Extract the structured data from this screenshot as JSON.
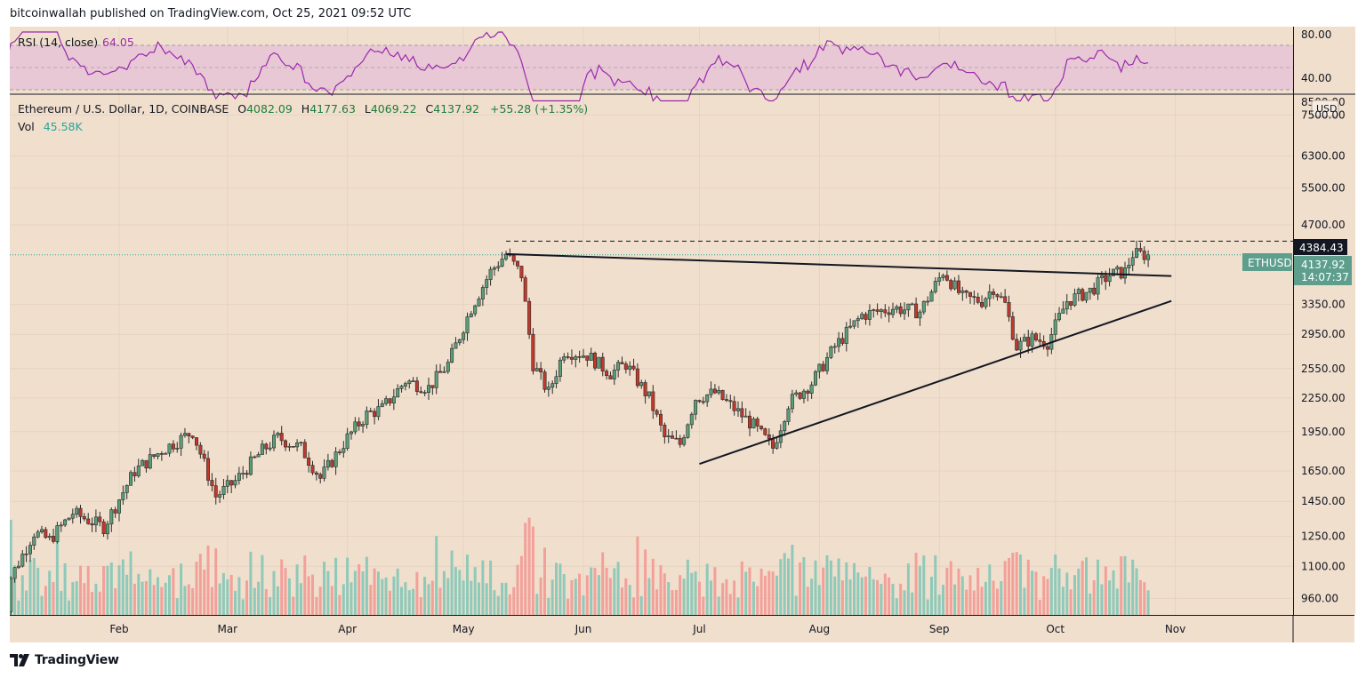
{
  "header": {
    "attribution": "bitcoinwallah published on TradingView.com, Oct 25, 2021 09:52 UTC"
  },
  "footer": {
    "brand": "TradingView"
  },
  "rsi": {
    "label": "RSI (14, close)",
    "value": "64.05",
    "levels": [
      "80.00",
      "40.00"
    ],
    "color": "#9c27b0",
    "band_color": "#e7c8d4"
  },
  "legend": {
    "symbol": "Ethereum / U.S. Dollar, 1D, COINBASE",
    "open_label": "O",
    "open": "4082.09",
    "high_label": "H",
    "high": "4177.63",
    "low_label": "L",
    "low": "4069.22",
    "close_label": "C",
    "close": "4137.92",
    "change": "+55.28 (+1.35%)",
    "vol_label": "Vol",
    "vol_value": "45.58K"
  },
  "price_axis": {
    "currency": "USD",
    "top_label": "8500.00",
    "ticks": [
      "7500.00",
      "6300.00",
      "5500.00",
      "4700.00",
      "3350.00",
      "2950.00",
      "2550.00",
      "2250.00",
      "1950.00",
      "1650.00",
      "1450.00",
      "1250.00",
      "1100.00",
      "960.00"
    ]
  },
  "markers": {
    "high_line": "4384.43",
    "symbol_tag": "ETHUSD",
    "last_price": "4137.92",
    "countdown": "14:07:37"
  },
  "colors": {
    "up": "#26a69a",
    "down": "#ef5350",
    "background": "#f1dfcd",
    "text": "#131722"
  },
  "chart_data": {
    "type": "candlestick",
    "symbol": "ETHUSD",
    "timeframe": "1D",
    "price_scale": "log",
    "x_ticks": [
      "Feb",
      "Mar",
      "Apr",
      "May",
      "Jun",
      "Jul",
      "Aug",
      "Sep",
      "Oct",
      "Nov"
    ],
    "close_series": [
      [
        "2021-01-01",
        730
      ],
      [
        "2021-01-04",
        1050
      ],
      [
        "2021-01-10",
        1270
      ],
      [
        "2021-01-14",
        1230
      ],
      [
        "2021-01-20",
        1380
      ],
      [
        "2021-01-28",
        1300
      ],
      [
        "2021-02-05",
        1650
      ],
      [
        "2021-02-12",
        1800
      ],
      [
        "2021-02-20",
        1950
      ],
      [
        "2021-02-26",
        1480
      ],
      [
        "2021-03-03",
        1580
      ],
      [
        "2021-03-10",
        1800
      ],
      [
        "2021-03-14",
        1900
      ],
      [
        "2021-03-20",
        1820
      ],
      [
        "2021-03-25",
        1600
      ],
      [
        "2021-04-01",
        1900
      ],
      [
        "2021-04-06",
        2100
      ],
      [
        "2021-04-10",
        2150
      ],
      [
        "2021-04-16",
        2420
      ],
      [
        "2021-04-22",
        2350
      ],
      [
        "2021-04-27",
        2600
      ],
      [
        "2021-05-03",
        3300
      ],
      [
        "2021-05-08",
        3850
      ],
      [
        "2021-05-12",
        4150
      ],
      [
        "2021-05-16",
        3800
      ],
      [
        "2021-05-19",
        2600
      ],
      [
        "2021-05-23",
        2300
      ],
      [
        "2021-05-27",
        2750
      ],
      [
        "2021-06-02",
        2700
      ],
      [
        "2021-06-08",
        2500
      ],
      [
        "2021-06-12",
        2600
      ],
      [
        "2021-06-18",
        2250
      ],
      [
        "2021-06-22",
        1900
      ],
      [
        "2021-06-26",
        1850
      ],
      [
        "2021-06-30",
        2250
      ],
      [
        "2021-07-05",
        2300
      ],
      [
        "2021-07-10",
        2150
      ],
      [
        "2021-07-15",
        2000
      ],
      [
        "2021-07-20",
        1820
      ],
      [
        "2021-07-24",
        2200
      ],
      [
        "2021-07-30",
        2400
      ],
      [
        "2021-08-05",
        2800
      ],
      [
        "2021-08-12",
        3200
      ],
      [
        "2021-08-20",
        3300
      ],
      [
        "2021-08-27",
        3250
      ],
      [
        "2021-09-02",
        3850
      ],
      [
        "2021-09-07",
        3450
      ],
      [
        "2021-09-12",
        3400
      ],
      [
        "2021-09-15",
        3600
      ],
      [
        "2021-09-18",
        3350
      ],
      [
        "2021-09-21",
        2800
      ],
      [
        "2021-09-25",
        2900
      ],
      [
        "2021-09-29",
        2850
      ],
      [
        "2021-10-04",
        3400
      ],
      [
        "2021-10-10",
        3550
      ],
      [
        "2021-10-15",
        3800
      ],
      [
        "2021-10-19",
        3850
      ],
      [
        "2021-10-21",
        4150
      ],
      [
        "2021-10-25",
        4137.92
      ]
    ],
    "horizontal_line": 4384.43,
    "trendlines": [
      {
        "name": "upper",
        "from": [
          "2021-05-12",
          4150
        ],
        "to": [
          "2021-10-31",
          3780
        ]
      },
      {
        "name": "lower",
        "from": [
          "2021-07-01",
          1700
        ],
        "to": [
          "2021-10-31",
          3400
        ]
      }
    ]
  }
}
